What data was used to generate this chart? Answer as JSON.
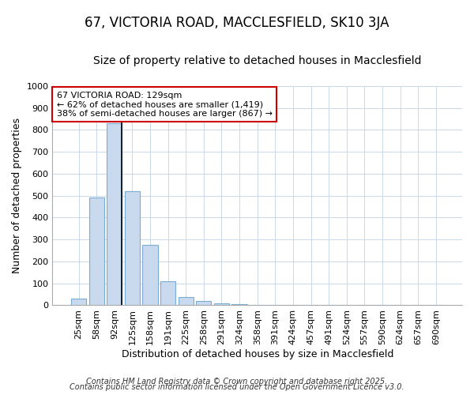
{
  "title": "67, VICTORIA ROAD, MACCLESFIELD, SK10 3JA",
  "subtitle": "Size of property relative to detached houses in Macclesfield",
  "xlabel": "Distribution of detached houses by size in Macclesfield",
  "ylabel": "Number of detached properties",
  "categories": [
    "25sqm",
    "58sqm",
    "92sqm",
    "125sqm",
    "158sqm",
    "191sqm",
    "225sqm",
    "258sqm",
    "291sqm",
    "324sqm",
    "358sqm",
    "391sqm",
    "424sqm",
    "457sqm",
    "491sqm",
    "524sqm",
    "557sqm",
    "590sqm",
    "624sqm",
    "657sqm",
    "690sqm"
  ],
  "values": [
    30,
    490,
    830,
    520,
    275,
    110,
    38,
    20,
    8,
    5,
    0,
    0,
    0,
    0,
    0,
    0,
    0,
    0,
    0,
    0,
    0
  ],
  "bar_color": "#c9d9ee",
  "bar_edge_color": "#7aadd4",
  "highlight_bar_index": 2,
  "highlight_line_color": "#000000",
  "ylim": [
    0,
    1000
  ],
  "yticks": [
    0,
    100,
    200,
    300,
    400,
    500,
    600,
    700,
    800,
    900,
    1000
  ],
  "annotation_text": "67 VICTORIA ROAD: 129sqm\n← 62% of detached houses are smaller (1,419)\n38% of semi-detached houses are larger (867) →",
  "annotation_box_color": "#ffffff",
  "annotation_box_edge_color": "#cc0000",
  "footer_line1": "Contains HM Land Registry data © Crown copyright and database right 2025.",
  "footer_line2": "Contains public sector information licensed under the Open Government Licence v3.0.",
  "background_color": "#ffffff",
  "plot_background_color": "#ffffff",
  "grid_color": "#c8d8e8",
  "title_fontsize": 12,
  "subtitle_fontsize": 10,
  "axis_label_fontsize": 9,
  "tick_fontsize": 8,
  "annotation_fontsize": 8,
  "footer_fontsize": 7
}
